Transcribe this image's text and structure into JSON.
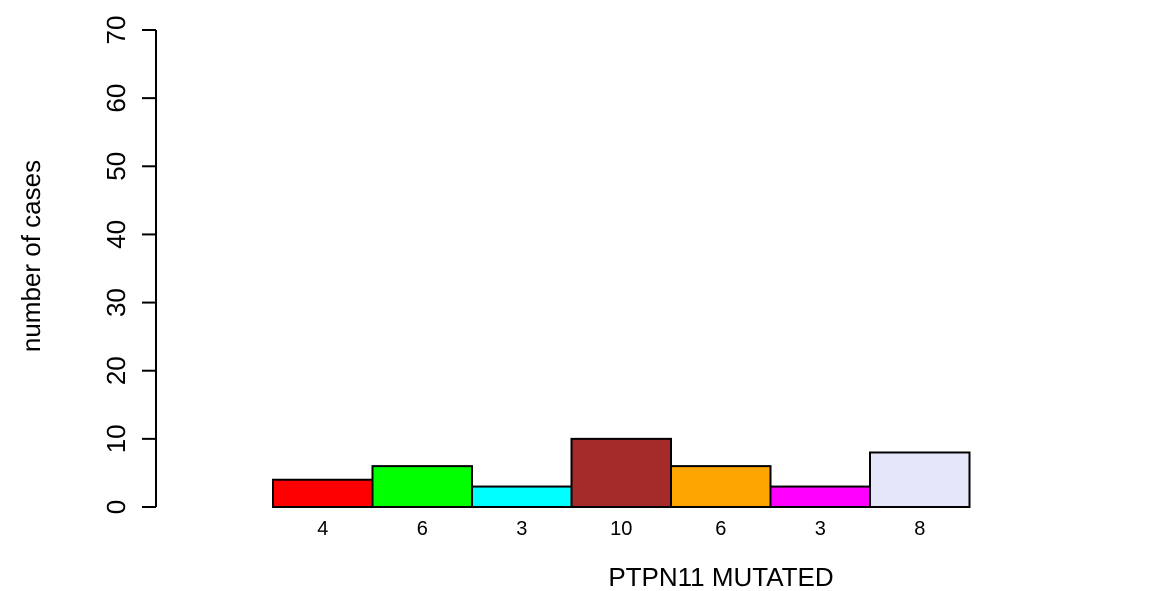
{
  "chart_data": {
    "type": "bar",
    "title": "",
    "xlabel": "PTPN11 MUTATED",
    "ylabel": "number of cases",
    "ylim": [
      0,
      70
    ],
    "yticks": [
      0,
      10,
      20,
      30,
      40,
      50,
      60,
      70
    ],
    "values": [
      4,
      6,
      3,
      10,
      6,
      3,
      8,
      0,
      0
    ],
    "data_labels": [
      "4",
      "6",
      "3",
      "10",
      "6",
      "3",
      "8",
      "",
      ""
    ],
    "colors": [
      "#ff0000",
      "#00ff00",
      "#00ffff",
      "#a52a2a",
      "#ffa500",
      "#ff00ff",
      "#e6e6fa",
      "#ffffff",
      "#ffffff"
    ],
    "grid": false,
    "legend": "none"
  }
}
